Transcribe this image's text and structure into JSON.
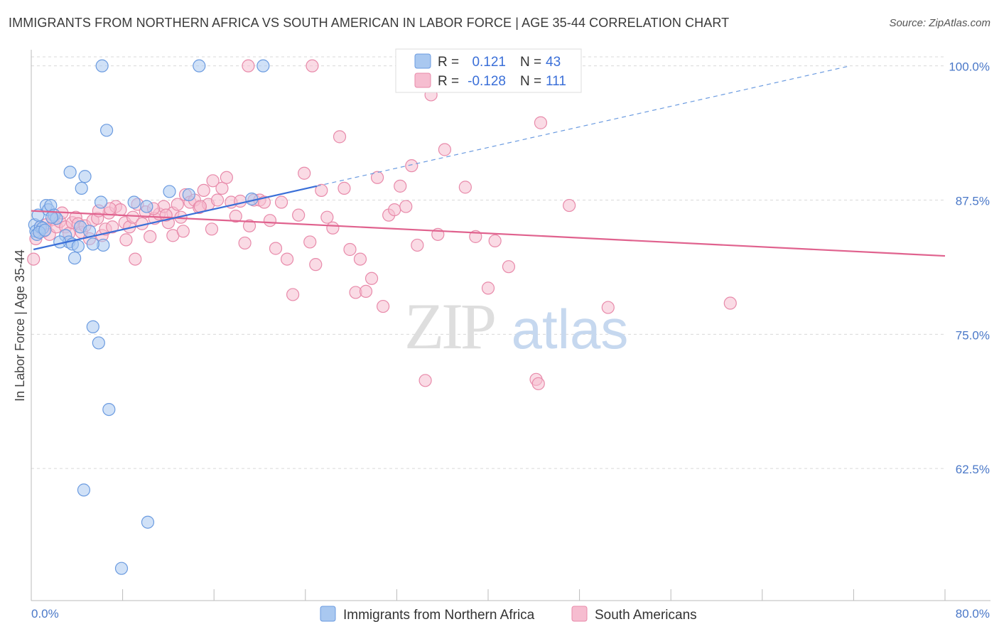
{
  "title": "IMMIGRANTS FROM NORTHERN AFRICA VS SOUTH AMERICAN IN LABOR FORCE | AGE 35-44 CORRELATION CHART",
  "source": "Source: ZipAtlas.com",
  "watermark": {
    "zip": "ZIP",
    "atlas": "atlas"
  },
  "colors": {
    "blue_fill": "#a9c8f0",
    "blue_stroke": "#6b9be0",
    "blue_line": "#3a6fd8",
    "pink_fill": "#f6bdd0",
    "pink_stroke": "#e88aaa",
    "pink_line": "#e0628e",
    "tick_text": "#4a78c8",
    "grid": "#d9d9d9"
  },
  "legend_top": [
    {
      "r_label": "R =",
      "r_value": "0.121",
      "n_label": "N =",
      "n_value": "43",
      "series": "blue"
    },
    {
      "r_label": "R =",
      "r_value": "-0.128",
      "n_label": "N =",
      "n_value": "111",
      "series": "pink"
    }
  ],
  "chart_data": {
    "type": "scatter",
    "title": "IMMIGRANTS FROM NORTHERN AFRICA VS SOUTH AMERICAN IN LABOR FORCE | AGE 35-44 CORRELATION CHART",
    "xlabel": "",
    "ylabel": "In Labor Force | Age 35-44",
    "xlim": [
      0,
      80
    ],
    "ylim": [
      50.2,
      101.5
    ],
    "x_tick_labels": [
      "0.0%",
      "80.0%"
    ],
    "y_ticks": [
      62.5,
      75.0,
      87.5,
      100.0
    ],
    "y_tick_labels": [
      "62.5%",
      "75.0%",
      "87.5%",
      "100.0%"
    ],
    "grid": true,
    "legend_position": "bottom-center",
    "series": [
      {
        "name": "Immigrants from Northern Africa",
        "color": "blue",
        "R": 0.121,
        "N": 43,
        "trend": {
          "x0": 0.2,
          "y0": 82.9,
          "x1": 25.0,
          "y1": 88.8
        },
        "trend_extension": {
          "x0": 25.0,
          "y0": 88.8,
          "x1": 71.7,
          "y1": 100.0
        },
        "points": [
          [
            0.3,
            85.2
          ],
          [
            0.4,
            84.6
          ],
          [
            0.5,
            84.3
          ],
          [
            0.6,
            86.1
          ],
          [
            0.8,
            85.0
          ],
          [
            1.0,
            84.9
          ],
          [
            1.3,
            87.0
          ],
          [
            1.5,
            86.6
          ],
          [
            1.7,
            87.0
          ],
          [
            2.0,
            86.1
          ],
          [
            2.2,
            85.8
          ],
          [
            1.8,
            85.9
          ],
          [
            0.7,
            84.5
          ],
          [
            1.2,
            84.7
          ],
          [
            3.0,
            84.2
          ],
          [
            3.3,
            83.6
          ],
          [
            3.6,
            83.4
          ],
          [
            4.1,
            83.2
          ],
          [
            4.3,
            85.0
          ],
          [
            5.1,
            84.6
          ],
          [
            6.3,
            83.3
          ],
          [
            6.1,
            87.3
          ],
          [
            9.0,
            87.3
          ],
          [
            10.1,
            86.9
          ],
          [
            12.1,
            88.3
          ],
          [
            13.8,
            88.0
          ],
          [
            19.3,
            87.6
          ],
          [
            3.4,
            90.1
          ],
          [
            4.7,
            89.7
          ],
          [
            4.4,
            88.6
          ],
          [
            6.6,
            94.0
          ],
          [
            6.2,
            100.0
          ],
          [
            14.7,
            100.0
          ],
          [
            20.3,
            100.0
          ],
          [
            5.4,
            83.4
          ],
          [
            3.8,
            82.1
          ],
          [
            2.5,
            83.6
          ],
          [
            5.4,
            75.7
          ],
          [
            5.9,
            74.2
          ],
          [
            6.8,
            68.0
          ],
          [
            4.6,
            60.5
          ],
          [
            10.2,
            57.5
          ],
          [
            7.9,
            53.2
          ]
        ]
      },
      {
        "name": "South Americans",
        "color": "pink",
        "R": -0.128,
        "N": 111,
        "trend": {
          "x0": 0.0,
          "y0": 86.5,
          "x1": 80.0,
          "y1": 82.3
        },
        "points": [
          [
            0.2,
            82.0
          ],
          [
            0.4,
            83.9
          ],
          [
            0.8,
            85.0
          ],
          [
            1.1,
            84.6
          ],
          [
            1.3,
            85.2
          ],
          [
            1.6,
            84.3
          ],
          [
            1.9,
            85.7
          ],
          [
            2.2,
            85.0
          ],
          [
            2.5,
            85.5
          ],
          [
            2.7,
            86.3
          ],
          [
            3.0,
            85.0
          ],
          [
            3.3,
            84.4
          ],
          [
            3.6,
            85.4
          ],
          [
            3.9,
            85.9
          ],
          [
            4.1,
            85.3
          ],
          [
            4.4,
            84.5
          ],
          [
            4.7,
            85.1
          ],
          [
            5.1,
            83.9
          ],
          [
            5.4,
            85.6
          ],
          [
            5.8,
            85.8
          ],
          [
            6.2,
            84.2
          ],
          [
            6.5,
            84.8
          ],
          [
            6.8,
            86.3
          ],
          [
            7.1,
            85.0
          ],
          [
            7.4,
            86.9
          ],
          [
            7.8,
            86.6
          ],
          [
            8.2,
            85.4
          ],
          [
            8.6,
            85.0
          ],
          [
            8.9,
            85.9
          ],
          [
            9.3,
            87.1
          ],
          [
            9.7,
            85.3
          ],
          [
            10.0,
            86.4
          ],
          [
            10.4,
            84.1
          ],
          [
            10.8,
            85.8
          ],
          [
            11.2,
            86.2
          ],
          [
            11.6,
            86.9
          ],
          [
            12.0,
            85.4
          ],
          [
            12.4,
            86.3
          ],
          [
            12.8,
            87.1
          ],
          [
            13.1,
            85.9
          ],
          [
            13.5,
            88.0
          ],
          [
            13.9,
            87.3
          ],
          [
            14.3,
            87.5
          ],
          [
            14.7,
            86.8
          ],
          [
            15.1,
            88.4
          ],
          [
            15.5,
            87.1
          ],
          [
            15.9,
            89.3
          ],
          [
            16.3,
            87.5
          ],
          [
            16.7,
            88.6
          ],
          [
            17.1,
            89.6
          ],
          [
            17.5,
            87.3
          ],
          [
            17.9,
            86.0
          ],
          [
            18.3,
            87.4
          ],
          [
            18.7,
            83.5
          ],
          [
            19.1,
            85.1
          ],
          [
            19.5,
            87.5
          ],
          [
            20.0,
            87.5
          ],
          [
            20.4,
            87.3
          ],
          [
            20.9,
            85.6
          ],
          [
            21.4,
            83.0
          ],
          [
            21.9,
            87.3
          ],
          [
            22.4,
            82.0
          ],
          [
            22.9,
            78.7
          ],
          [
            23.4,
            86.1
          ],
          [
            23.9,
            90.0
          ],
          [
            24.4,
            83.6
          ],
          [
            24.9,
            81.5
          ],
          [
            25.4,
            88.4
          ],
          [
            25.9,
            85.9
          ],
          [
            26.4,
            84.9
          ],
          [
            27.0,
            93.4
          ],
          [
            27.4,
            88.6
          ],
          [
            27.9,
            82.9
          ],
          [
            28.4,
            78.9
          ],
          [
            28.8,
            82.0
          ],
          [
            29.3,
            79.0
          ],
          [
            29.8,
            80.2
          ],
          [
            30.3,
            89.6
          ],
          [
            30.8,
            77.6
          ],
          [
            31.3,
            86.1
          ],
          [
            31.8,
            86.6
          ],
          [
            32.3,
            88.8
          ],
          [
            32.8,
            86.9
          ],
          [
            33.3,
            90.7
          ],
          [
            33.8,
            83.3
          ],
          [
            34.5,
            70.7
          ],
          [
            35.0,
            97.3
          ],
          [
            36.2,
            92.2
          ],
          [
            35.6,
            84.3
          ],
          [
            38.0,
            88.7
          ],
          [
            38.9,
            84.1
          ],
          [
            40.0,
            79.3
          ],
          [
            40.6,
            83.7
          ],
          [
            41.8,
            81.3
          ],
          [
            44.2,
            70.8
          ],
          [
            44.4,
            70.4
          ],
          [
            44.6,
            94.7
          ],
          [
            47.1,
            87.0
          ],
          [
            19.0,
            100.0
          ],
          [
            24.6,
            100.0
          ],
          [
            9.1,
            82.0
          ],
          [
            10.7,
            86.7
          ],
          [
            12.4,
            84.2
          ],
          [
            14.8,
            86.9
          ],
          [
            15.8,
            84.8
          ],
          [
            11.8,
            86.1
          ],
          [
            13.3,
            84.6
          ],
          [
            8.3,
            83.8
          ],
          [
            6.9,
            86.7
          ],
          [
            5.9,
            86.5
          ],
          [
            50.5,
            77.5
          ],
          [
            61.2,
            77.9
          ]
        ]
      }
    ]
  }
}
